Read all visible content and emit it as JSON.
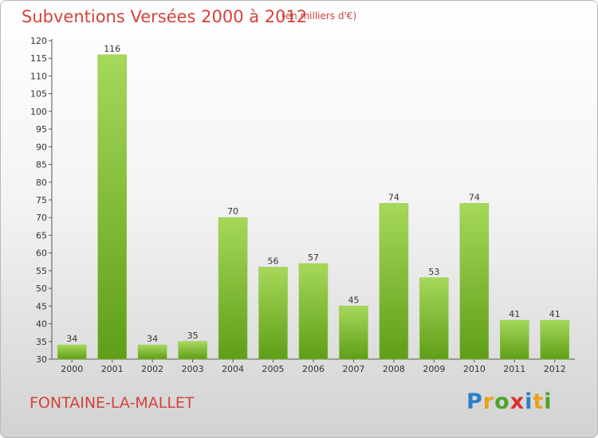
{
  "title": "Subventions Versées 2000 à 2012",
  "unit_note": "(en milliers d'€)",
  "location": "FONTAINE-LA-MALLET",
  "logo_text": "Proxiti",
  "colors": {
    "bar_light": "#a6d85a",
    "bar_dark": "#5f9e18",
    "title": "#d4413a"
  },
  "chart_data": {
    "type": "bar",
    "title": "Subventions Versées 2000 à 2012",
    "xlabel": "",
    "ylabel": "",
    "categories": [
      "2000",
      "2001",
      "2002",
      "2003",
      "2004",
      "2005",
      "2006",
      "2007",
      "2008",
      "2009",
      "2010",
      "2011",
      "2012"
    ],
    "values": [
      34,
      116,
      34,
      35,
      70,
      56,
      57,
      45,
      74,
      53,
      74,
      41,
      41
    ],
    "ylim": [
      30,
      120
    ],
    "yticks": [
      30,
      35,
      40,
      45,
      50,
      55,
      60,
      65,
      70,
      75,
      80,
      85,
      90,
      95,
      100,
      105,
      110,
      115,
      120
    ],
    "grid": false,
    "data_labels": true
  }
}
